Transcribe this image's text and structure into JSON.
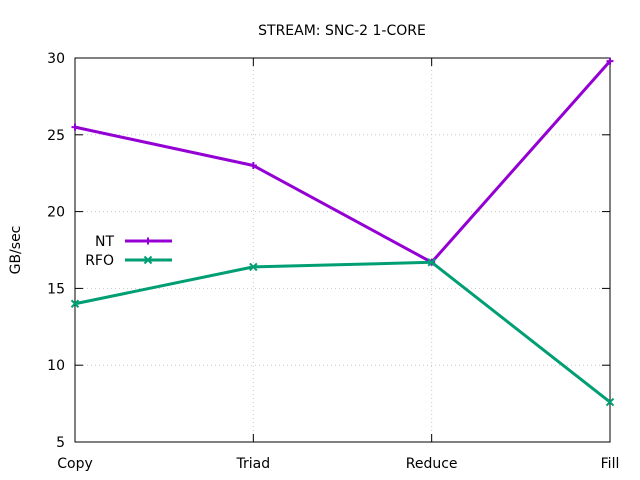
{
  "chart_data": {
    "type": "line",
    "title": "STREAM: SNC-2 1-CORE",
    "xlabel": "",
    "ylabel": "GB/sec",
    "categories": [
      "Copy",
      "Triad",
      "Reduce",
      "Fill"
    ],
    "ylim": [
      5,
      30
    ],
    "yticks": [
      5,
      10,
      15,
      20,
      25,
      30
    ],
    "grid": true,
    "legend_position": "left",
    "series": [
      {
        "name": "NT",
        "values": [
          25.5,
          23.0,
          16.7,
          29.8
        ],
        "color": "#9400d3",
        "marker": "plus"
      },
      {
        "name": "RFO",
        "values": [
          14.0,
          16.4,
          16.7,
          7.6
        ],
        "color": "#009e73",
        "marker": "cross"
      }
    ]
  }
}
